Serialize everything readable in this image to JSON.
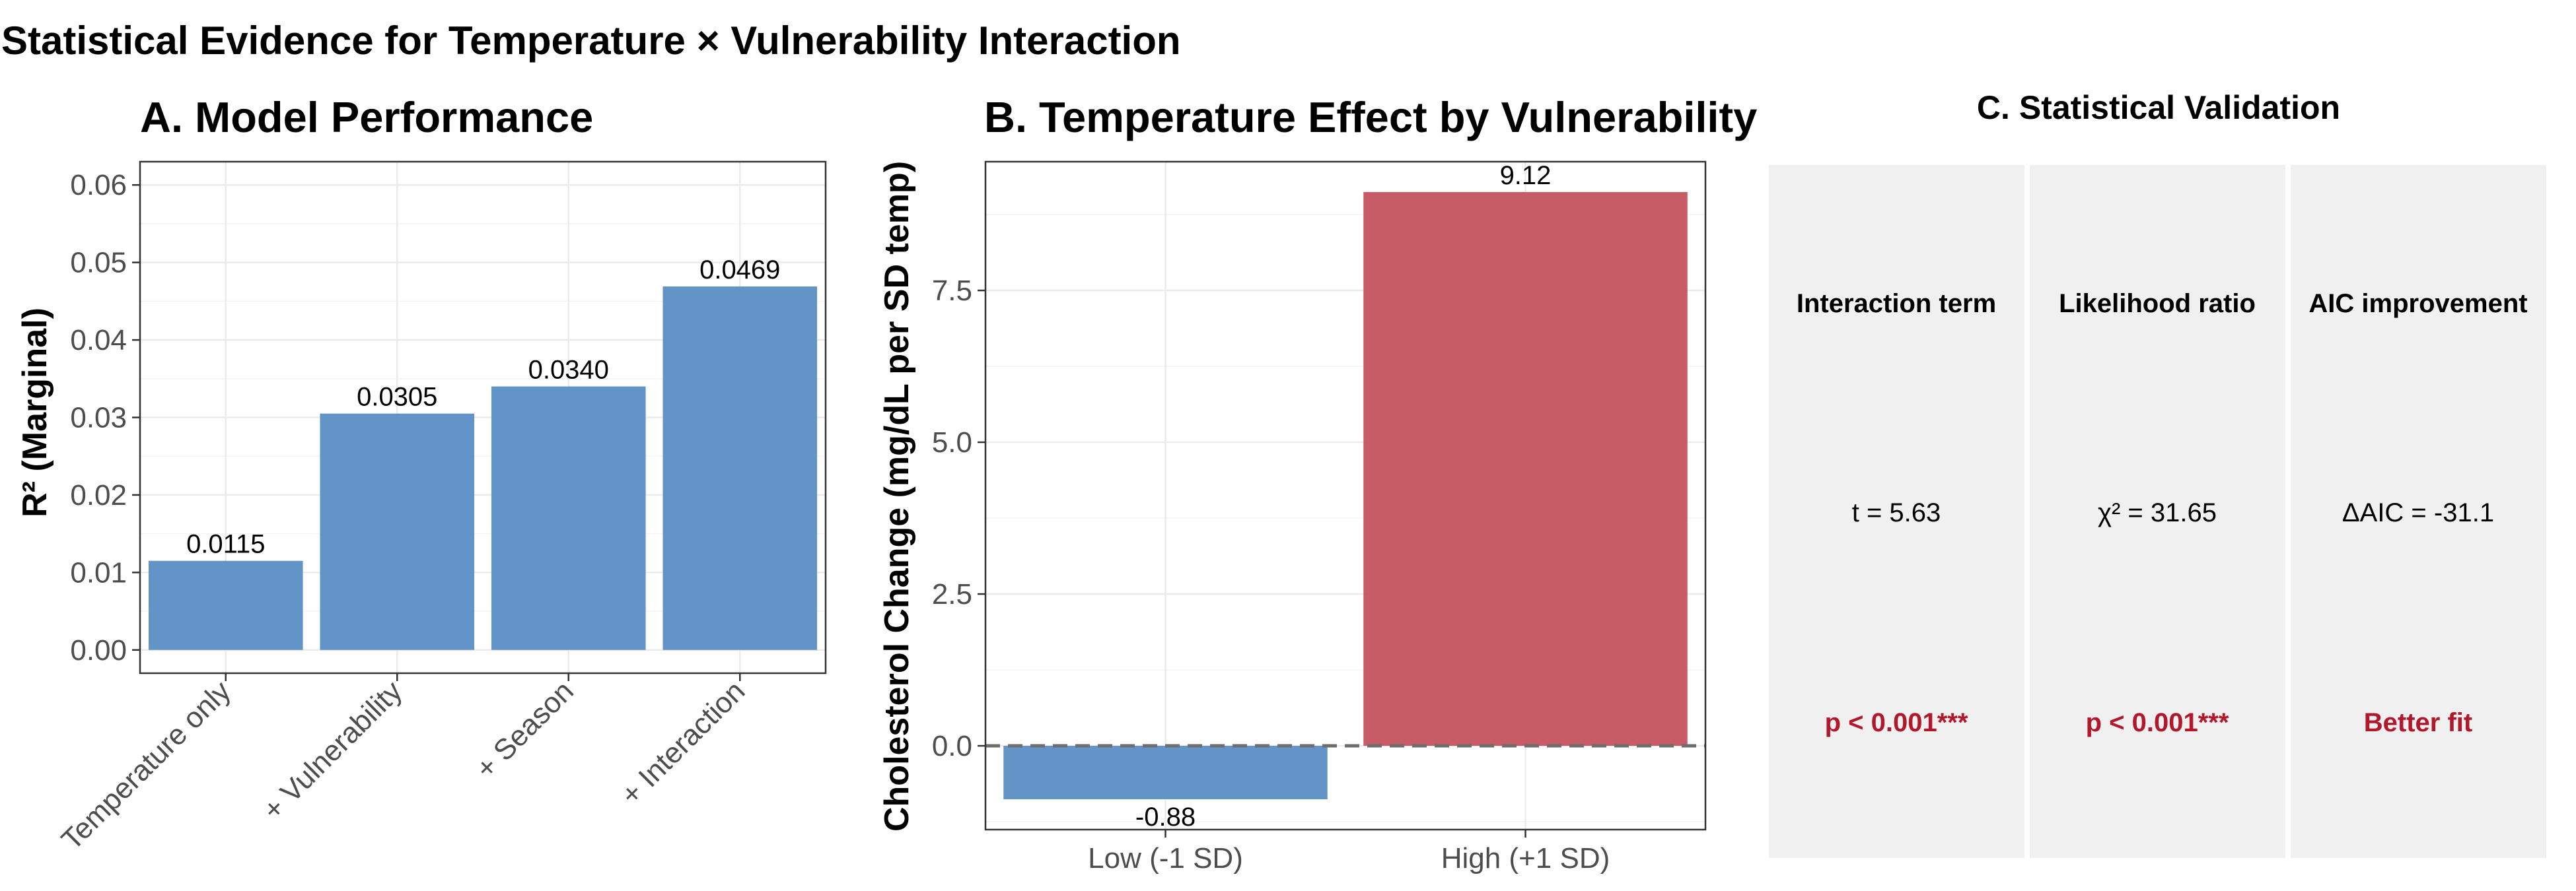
{
  "figure_title": "Statistical Evidence for Temperature × Vulnerability Interaction",
  "colors": {
    "blue": "#5b8ec5",
    "red": "#c4535e",
    "sig_red": "#b2182b",
    "card_bg": "#f0f0f0"
  },
  "chart_data": [
    {
      "id": "A",
      "type": "bar",
      "title": "A. Model Performance",
      "xlabel": "",
      "ylabel": "R² (Marginal)",
      "categories": [
        "Temperature only",
        "+ Vulnerability",
        "+ Season",
        "+ Interaction"
      ],
      "values": [
        0.0115,
        0.0305,
        0.034,
        0.0469
      ],
      "data_labels": [
        "0.0115",
        "0.0305",
        "0.0340",
        "0.0469"
      ],
      "ylim": [
        -0.003,
        0.063
      ],
      "yticks": [
        0.0,
        0.01,
        0.02,
        0.03,
        0.04,
        0.05,
        0.06
      ],
      "ytick_labels": [
        "0.00",
        "0.01",
        "0.02",
        "0.03",
        "0.04",
        "0.05",
        "0.06"
      ],
      "grid": true,
      "x_tick_rotation": 45,
      "bar_color": "#5b8ec5"
    },
    {
      "id": "B",
      "type": "bar",
      "title": "B. Temperature Effect by Vulnerability",
      "xlabel": "",
      "ylabel": "Cholesterol Change (mg/dL per SD temp)",
      "categories": [
        "Low (-1 SD)",
        "High (+1 SD)"
      ],
      "values": [
        -0.88,
        9.12
      ],
      "data_labels": [
        "-0.88",
        "9.12"
      ],
      "colors": [
        "#5b8ec5",
        "#c4535e"
      ],
      "ylim": [
        -1.38,
        9.62
      ],
      "yticks": [
        0.0,
        2.5,
        5.0,
        7.5
      ],
      "ytick_labels": [
        "0.0",
        "2.5",
        "5.0",
        "7.5"
      ],
      "reference_line": 0,
      "grid": true
    }
  ],
  "validation": {
    "title": "C. Statistical Validation",
    "cards": [
      {
        "label": "Interaction term",
        "value": "t = 5.63",
        "result": "p < 0.001***"
      },
      {
        "label": "Likelihood ratio",
        "value": "χ² = 31.65",
        "result": "p < 0.001***"
      },
      {
        "label": "AIC improvement",
        "value": "ΔAIC = -31.1",
        "result": "Better fit"
      }
    ]
  }
}
